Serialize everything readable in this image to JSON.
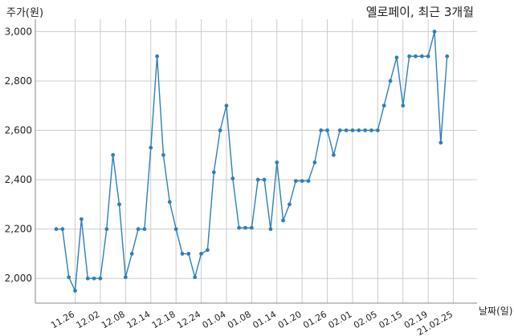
{
  "chart_data": {
    "type": "line",
    "title": "옐로페이, 최근 3개월",
    "ylabel": "주가(원)",
    "xlabel": "날짜(일)",
    "ylim": [
      1900,
      3050
    ],
    "yticks": [
      2000,
      2200,
      2400,
      2600,
      2800,
      3000
    ],
    "ytick_labels": [
      "2,000",
      "2,200",
      "2,400",
      "2,600",
      "2,800",
      "3,000"
    ],
    "x_tick_labels": [
      "11.26",
      "12.02",
      "12.08",
      "12.14",
      "12.18",
      "12.24",
      "01.04",
      "01.08",
      "01.14",
      "01.20",
      "01.26",
      "02.01",
      "02.05",
      "02.15",
      "02.19",
      "21.02.25"
    ],
    "x_tick_indices": [
      3,
      7,
      11,
      15,
      19,
      23,
      27,
      31,
      35,
      39,
      43,
      47,
      51,
      55,
      59,
      63
    ],
    "grid": true,
    "series": [
      {
        "color": "#2e7fb8",
        "values": [
          2200,
          2200,
          2005,
          1950,
          2240,
          2000,
          2000,
          2000,
          2200,
          2500,
          2300,
          2005,
          2100,
          2200,
          2200,
          2530,
          2900,
          2500,
          2310,
          2200,
          2100,
          2100,
          2005,
          2100,
          2115,
          2430,
          2600,
          2700,
          2405,
          2205,
          2205,
          2205,
          2400,
          2400,
          2200,
          2470,
          2235,
          2300,
          2395,
          2395,
          2395,
          2470,
          2600,
          2600,
          2500,
          2600,
          2600,
          2600,
          2600,
          2600,
          2600,
          2600,
          2700,
          2800,
          2895,
          2700,
          2900,
          2900,
          2900,
          2900,
          3000,
          2550,
          2900
        ]
      }
    ]
  }
}
